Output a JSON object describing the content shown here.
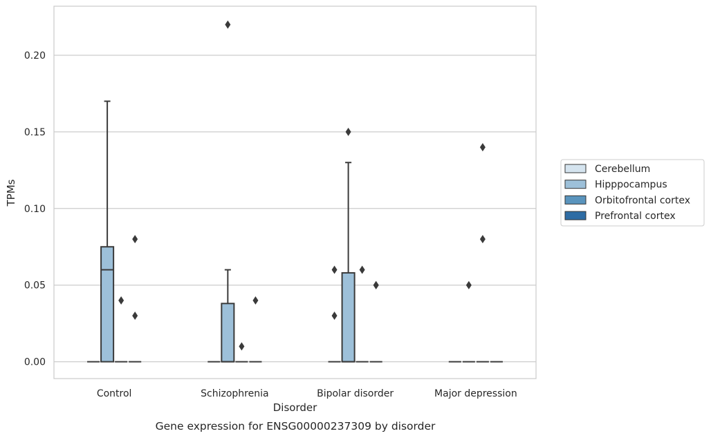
{
  "chart_data": {
    "type": "box",
    "xlabel": "Disorder",
    "ylabel": "TPMs",
    "caption": "Gene expression for ENSG00000237309 by disorder",
    "ylim": [
      -0.011,
      0.232
    ],
    "yticks": [
      0.0,
      0.05,
      0.1,
      0.15,
      0.2
    ],
    "ytick_labels": [
      "0.00",
      "0.05",
      "0.10",
      "0.15",
      "0.20"
    ],
    "grid": "horizontal",
    "legend_position": "right",
    "categories": [
      "Control",
      "Schizophrenia",
      "Bipolar disorder",
      "Major depression"
    ],
    "series": [
      {
        "name": "Cerebellum",
        "color": "#d5e4ef",
        "boxes": [
          {
            "q1": 0,
            "median": 0,
            "q3": 0,
            "whislo": 0,
            "whishi": 0,
            "fliers": []
          },
          {
            "q1": 0,
            "median": 0,
            "q3": 0,
            "whislo": 0,
            "whishi": 0,
            "fliers": []
          },
          {
            "q1": 0,
            "median": 0,
            "q3": 0,
            "whislo": 0,
            "whishi": 0,
            "fliers": [
              0.03,
              0.06
            ]
          },
          {
            "q1": 0,
            "median": 0,
            "q3": 0,
            "whislo": 0,
            "whishi": 0,
            "fliers": []
          }
        ]
      },
      {
        "name": "Hipppocampus",
        "color": "#9dc0d9",
        "boxes": [
          {
            "q1": 0,
            "median": 0.06,
            "q3": 0.075,
            "whislo": 0,
            "whishi": 0.17,
            "fliers": []
          },
          {
            "q1": 0,
            "median": 0,
            "q3": 0.038,
            "whislo": 0,
            "whishi": 0.06,
            "fliers": [
              0.22
            ]
          },
          {
            "q1": 0,
            "median": 0,
            "q3": 0.058,
            "whislo": 0,
            "whishi": 0.13,
            "fliers": [
              0.15
            ]
          },
          {
            "q1": 0,
            "median": 0,
            "q3": 0,
            "whislo": 0,
            "whishi": 0,
            "fliers": [
              0.05
            ]
          }
        ]
      },
      {
        "name": "Orbitofrontal cortex",
        "color": "#5a94bd",
        "boxes": [
          {
            "q1": 0,
            "median": 0,
            "q3": 0,
            "whislo": 0,
            "whishi": 0,
            "fliers": [
              0.04
            ]
          },
          {
            "q1": 0,
            "median": 0,
            "q3": 0,
            "whislo": 0,
            "whishi": 0,
            "fliers": [
              0.01
            ]
          },
          {
            "q1": 0,
            "median": 0,
            "q3": 0,
            "whislo": 0,
            "whishi": 0,
            "fliers": [
              0.06
            ]
          },
          {
            "q1": 0,
            "median": 0,
            "q3": 0,
            "whislo": 0,
            "whishi": 0,
            "fliers": [
              0.08,
              0.14
            ]
          }
        ]
      },
      {
        "name": "Prefrontal cortex",
        "color": "#2e6ca4",
        "boxes": [
          {
            "q1": 0,
            "median": 0,
            "q3": 0,
            "whislo": 0,
            "whishi": 0,
            "fliers": [
              0.03,
              0.08
            ]
          },
          {
            "q1": 0,
            "median": 0,
            "q3": 0,
            "whislo": 0,
            "whishi": 0,
            "fliers": [
              0.04
            ]
          },
          {
            "q1": 0,
            "median": 0,
            "q3": 0,
            "whislo": 0,
            "whishi": 0,
            "fliers": [
              0.05,
              0.05
            ]
          },
          {
            "q1": 0,
            "median": 0,
            "q3": 0,
            "whislo": 0,
            "whishi": 0,
            "fliers": []
          }
        ]
      }
    ]
  }
}
